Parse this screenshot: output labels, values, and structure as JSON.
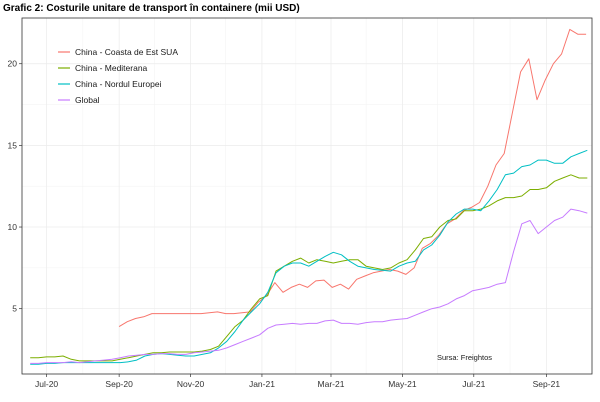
{
  "chart_data": {
    "type": "line",
    "title": "Grafic 2: Costurile unitare de transport în containere (mii USD)",
    "xlabel": "",
    "ylabel": "",
    "x_ticks": [
      {
        "date": "2020-07-01",
        "label": "Jul-20"
      },
      {
        "date": "2020-09-01",
        "label": "Sep-20"
      },
      {
        "date": "2020-11-01",
        "label": "Nov-20"
      },
      {
        "date": "2021-01-01",
        "label": "Jan-21"
      },
      {
        "date": "2021-03-01",
        "label": "Mar-21"
      },
      {
        "date": "2021-05-01",
        "label": "May-21"
      },
      {
        "date": "2021-07-01",
        "label": "Jul-21"
      },
      {
        "date": "2021-09-01",
        "label": "Sep-21"
      }
    ],
    "y_ticks": [
      5,
      10,
      15,
      20
    ],
    "xlim": [
      "2020-06-10",
      "2021-10-10"
    ],
    "ylim": [
      1,
      22.8
    ],
    "grid": true,
    "legend_position": "top-left",
    "annotation": "Sursa: Freightos",
    "series": [
      {
        "name": "China - Coasta de Est SUA",
        "color": "#f8766d",
        "points": [
          [
            "2020-09-01",
            3.9
          ],
          [
            "2020-09-08",
            4.2
          ],
          [
            "2020-09-15",
            4.4
          ],
          [
            "2020-09-22",
            4.5
          ],
          [
            "2020-09-29",
            4.7
          ],
          [
            "2020-10-06",
            4.7
          ],
          [
            "2020-10-13",
            4.7
          ],
          [
            "2020-10-20",
            4.7
          ],
          [
            "2020-10-27",
            4.7
          ],
          [
            "2020-11-03",
            4.7
          ],
          [
            "2020-11-10",
            4.7
          ],
          [
            "2020-11-17",
            4.75
          ],
          [
            "2020-11-24",
            4.8
          ],
          [
            "2020-12-01",
            4.7
          ],
          [
            "2020-12-08",
            4.7
          ],
          [
            "2020-12-15",
            4.75
          ],
          [
            "2020-12-22",
            4.8
          ],
          [
            "2020-12-29",
            5.4
          ],
          [
            "2021-01-05",
            5.8
          ],
          [
            "2021-01-12",
            6.6
          ],
          [
            "2021-01-19",
            6.0
          ],
          [
            "2021-01-26",
            6.3
          ],
          [
            "2021-02-02",
            6.5
          ],
          [
            "2021-02-09",
            6.3
          ],
          [
            "2021-02-16",
            6.7
          ],
          [
            "2021-02-23",
            6.75
          ],
          [
            "2021-03-02",
            6.3
          ],
          [
            "2021-03-09",
            6.5
          ],
          [
            "2021-03-16",
            6.2
          ],
          [
            "2021-03-23",
            6.8
          ],
          [
            "2021-03-30",
            7.0
          ],
          [
            "2021-04-06",
            7.2
          ],
          [
            "2021-04-13",
            7.3
          ],
          [
            "2021-04-20",
            7.4
          ],
          [
            "2021-04-27",
            7.3
          ],
          [
            "2021-05-04",
            7.1
          ],
          [
            "2021-05-11",
            7.5
          ],
          [
            "2021-05-18",
            8.7
          ],
          [
            "2021-05-25",
            9.0
          ],
          [
            "2021-06-01",
            9.5
          ],
          [
            "2021-06-08",
            10.2
          ],
          [
            "2021-06-15",
            10.5
          ],
          [
            "2021-06-22",
            11.0
          ],
          [
            "2021-06-29",
            11.2
          ],
          [
            "2021-07-06",
            11.5
          ],
          [
            "2021-07-13",
            12.5
          ],
          [
            "2021-07-20",
            13.8
          ],
          [
            "2021-07-27",
            14.5
          ],
          [
            "2021-08-03",
            17.0
          ],
          [
            "2021-08-10",
            19.5
          ],
          [
            "2021-08-17",
            20.3
          ],
          [
            "2021-08-24",
            17.8
          ],
          [
            "2021-08-31",
            19.0
          ],
          [
            "2021-09-07",
            20.0
          ],
          [
            "2021-09-14",
            20.6
          ],
          [
            "2021-09-21",
            22.1
          ],
          [
            "2021-09-28",
            21.8
          ],
          [
            "2021-10-05",
            21.8
          ]
        ]
      },
      {
        "name": "China - Mediterana",
        "color": "#7cae00",
        "points": [
          [
            "2020-06-17",
            2.0
          ],
          [
            "2020-06-24",
            2.0
          ],
          [
            "2020-07-01",
            2.05
          ],
          [
            "2020-07-08",
            2.05
          ],
          [
            "2020-07-15",
            2.1
          ],
          [
            "2020-07-22",
            1.9
          ],
          [
            "2020-07-29",
            1.8
          ],
          [
            "2020-08-05",
            1.8
          ],
          [
            "2020-08-12",
            1.8
          ],
          [
            "2020-08-19",
            1.8
          ],
          [
            "2020-08-26",
            1.8
          ],
          [
            "2020-09-02",
            1.9
          ],
          [
            "2020-09-09",
            2.0
          ],
          [
            "2020-09-16",
            2.1
          ],
          [
            "2020-09-23",
            2.2
          ],
          [
            "2020-09-30",
            2.3
          ],
          [
            "2020-10-07",
            2.3
          ],
          [
            "2020-10-14",
            2.35
          ],
          [
            "2020-10-21",
            2.35
          ],
          [
            "2020-10-28",
            2.35
          ],
          [
            "2020-11-04",
            2.35
          ],
          [
            "2020-11-11",
            2.4
          ],
          [
            "2020-11-18",
            2.5
          ],
          [
            "2020-11-25",
            2.7
          ],
          [
            "2020-12-02",
            3.3
          ],
          [
            "2020-12-09",
            3.9
          ],
          [
            "2020-12-16",
            4.3
          ],
          [
            "2020-12-23",
            5.0
          ],
          [
            "2020-12-30",
            5.6
          ],
          [
            "2021-01-06",
            5.8
          ],
          [
            "2021-01-13",
            7.3
          ],
          [
            "2021-01-20",
            7.6
          ],
          [
            "2021-01-27",
            7.9
          ],
          [
            "2021-02-03",
            8.1
          ],
          [
            "2021-02-10",
            7.8
          ],
          [
            "2021-02-17",
            8.0
          ],
          [
            "2021-02-24",
            7.9
          ],
          [
            "2021-03-03",
            7.8
          ],
          [
            "2021-03-10",
            7.9
          ],
          [
            "2021-03-17",
            8.0
          ],
          [
            "2021-03-24",
            8.0
          ],
          [
            "2021-03-31",
            7.6
          ],
          [
            "2021-04-07",
            7.5
          ],
          [
            "2021-04-14",
            7.4
          ],
          [
            "2021-04-21",
            7.5
          ],
          [
            "2021-04-28",
            7.8
          ],
          [
            "2021-05-05",
            8.0
          ],
          [
            "2021-05-12",
            8.6
          ],
          [
            "2021-05-19",
            9.3
          ],
          [
            "2021-05-26",
            9.4
          ],
          [
            "2021-06-02",
            10.0
          ],
          [
            "2021-06-09",
            10.4
          ],
          [
            "2021-06-16",
            10.5
          ],
          [
            "2021-06-23",
            11.0
          ],
          [
            "2021-06-30",
            11.0
          ],
          [
            "2021-07-07",
            11.1
          ],
          [
            "2021-07-14",
            11.3
          ],
          [
            "2021-07-21",
            11.6
          ],
          [
            "2021-07-28",
            11.8
          ],
          [
            "2021-08-04",
            11.8
          ],
          [
            "2021-08-11",
            11.9
          ],
          [
            "2021-08-18",
            12.3
          ],
          [
            "2021-08-25",
            12.3
          ],
          [
            "2021-09-01",
            12.4
          ],
          [
            "2021-09-08",
            12.8
          ],
          [
            "2021-09-15",
            13.0
          ],
          [
            "2021-09-22",
            13.2
          ],
          [
            "2021-09-29",
            13.0
          ],
          [
            "2021-10-06",
            13.0
          ]
        ]
      },
      {
        "name": "China - Nordul Europei",
        "color": "#00bfc4",
        "points": [
          [
            "2020-06-17",
            1.6
          ],
          [
            "2020-06-24",
            1.6
          ],
          [
            "2020-07-01",
            1.65
          ],
          [
            "2020-07-08",
            1.65
          ],
          [
            "2020-07-15",
            1.7
          ],
          [
            "2020-07-22",
            1.7
          ],
          [
            "2020-07-29",
            1.7
          ],
          [
            "2020-08-05",
            1.7
          ],
          [
            "2020-08-12",
            1.7
          ],
          [
            "2020-08-19",
            1.7
          ],
          [
            "2020-08-26",
            1.7
          ],
          [
            "2020-09-02",
            1.7
          ],
          [
            "2020-09-09",
            1.75
          ],
          [
            "2020-09-16",
            1.85
          ],
          [
            "2020-09-23",
            2.1
          ],
          [
            "2020-09-30",
            2.2
          ],
          [
            "2020-10-07",
            2.25
          ],
          [
            "2020-10-14",
            2.2
          ],
          [
            "2020-10-21",
            2.15
          ],
          [
            "2020-10-28",
            2.1
          ],
          [
            "2020-11-04",
            2.1
          ],
          [
            "2020-11-11",
            2.2
          ],
          [
            "2020-11-18",
            2.3
          ],
          [
            "2020-11-25",
            2.6
          ],
          [
            "2020-12-02",
            3.0
          ],
          [
            "2020-12-09",
            3.6
          ],
          [
            "2020-12-16",
            4.3
          ],
          [
            "2020-12-23",
            4.8
          ],
          [
            "2020-12-30",
            5.3
          ],
          [
            "2021-01-06",
            6.0
          ],
          [
            "2021-01-13",
            7.2
          ],
          [
            "2021-01-20",
            7.6
          ],
          [
            "2021-01-27",
            7.8
          ],
          [
            "2021-02-03",
            7.8
          ],
          [
            "2021-02-10",
            7.6
          ],
          [
            "2021-02-17",
            7.9
          ],
          [
            "2021-02-24",
            8.2
          ],
          [
            "2021-03-03",
            8.45
          ],
          [
            "2021-03-10",
            8.3
          ],
          [
            "2021-03-17",
            7.9
          ],
          [
            "2021-03-24",
            7.6
          ],
          [
            "2021-03-31",
            7.5
          ],
          [
            "2021-04-07",
            7.4
          ],
          [
            "2021-04-14",
            7.35
          ],
          [
            "2021-04-21",
            7.3
          ],
          [
            "2021-04-28",
            7.6
          ],
          [
            "2021-05-05",
            7.8
          ],
          [
            "2021-05-12",
            7.9
          ],
          [
            "2021-05-19",
            8.6
          ],
          [
            "2021-05-26",
            8.9
          ],
          [
            "2021-06-02",
            9.5
          ],
          [
            "2021-06-09",
            10.3
          ],
          [
            "2021-06-16",
            10.8
          ],
          [
            "2021-06-23",
            11.1
          ],
          [
            "2021-06-30",
            11.1
          ],
          [
            "2021-07-07",
            11.0
          ],
          [
            "2021-07-14",
            11.6
          ],
          [
            "2021-07-21",
            12.3
          ],
          [
            "2021-07-28",
            13.2
          ],
          [
            "2021-08-04",
            13.3
          ],
          [
            "2021-08-11",
            13.7
          ],
          [
            "2021-08-18",
            13.8
          ],
          [
            "2021-08-25",
            14.1
          ],
          [
            "2021-09-01",
            14.1
          ],
          [
            "2021-09-08",
            13.9
          ],
          [
            "2021-09-15",
            13.9
          ],
          [
            "2021-09-22",
            14.3
          ],
          [
            "2021-09-29",
            14.5
          ],
          [
            "2021-10-06",
            14.7
          ]
        ]
      },
      {
        "name": "Global",
        "color": "#c77cff",
        "points": [
          [
            "2020-06-17",
            1.65
          ],
          [
            "2020-06-24",
            1.65
          ],
          [
            "2020-07-01",
            1.7
          ],
          [
            "2020-07-08",
            1.7
          ],
          [
            "2020-07-15",
            1.7
          ],
          [
            "2020-07-22",
            1.75
          ],
          [
            "2020-07-29",
            1.7
          ],
          [
            "2020-08-05",
            1.75
          ],
          [
            "2020-08-12",
            1.8
          ],
          [
            "2020-08-19",
            1.85
          ],
          [
            "2020-08-26",
            1.9
          ],
          [
            "2020-09-02",
            2.0
          ],
          [
            "2020-09-09",
            2.1
          ],
          [
            "2020-09-16",
            2.15
          ],
          [
            "2020-09-23",
            2.2
          ],
          [
            "2020-09-30",
            2.2
          ],
          [
            "2020-10-07",
            2.25
          ],
          [
            "2020-10-14",
            2.25
          ],
          [
            "2020-10-21",
            2.2
          ],
          [
            "2020-10-28",
            2.2
          ],
          [
            "2020-11-04",
            2.3
          ],
          [
            "2020-11-11",
            2.35
          ],
          [
            "2020-11-18",
            2.4
          ],
          [
            "2020-11-25",
            2.45
          ],
          [
            "2020-12-02",
            2.6
          ],
          [
            "2020-12-09",
            2.8
          ],
          [
            "2020-12-16",
            3.0
          ],
          [
            "2020-12-23",
            3.2
          ],
          [
            "2020-12-30",
            3.4
          ],
          [
            "2021-01-06",
            3.8
          ],
          [
            "2021-01-13",
            4.0
          ],
          [
            "2021-01-20",
            4.05
          ],
          [
            "2021-01-27",
            4.1
          ],
          [
            "2021-02-03",
            4.05
          ],
          [
            "2021-02-10",
            4.1
          ],
          [
            "2021-02-17",
            4.1
          ],
          [
            "2021-02-24",
            4.25
          ],
          [
            "2021-03-03",
            4.3
          ],
          [
            "2021-03-10",
            4.1
          ],
          [
            "2021-03-17",
            4.1
          ],
          [
            "2021-03-24",
            4.05
          ],
          [
            "2021-03-31",
            4.15
          ],
          [
            "2021-04-07",
            4.2
          ],
          [
            "2021-04-14",
            4.2
          ],
          [
            "2021-04-21",
            4.3
          ],
          [
            "2021-04-28",
            4.35
          ],
          [
            "2021-05-05",
            4.4
          ],
          [
            "2021-05-12",
            4.6
          ],
          [
            "2021-05-19",
            4.8
          ],
          [
            "2021-05-26",
            5.0
          ],
          [
            "2021-06-02",
            5.1
          ],
          [
            "2021-06-09",
            5.3
          ],
          [
            "2021-06-16",
            5.6
          ],
          [
            "2021-06-23",
            5.8
          ],
          [
            "2021-06-30",
            6.1
          ],
          [
            "2021-07-07",
            6.2
          ],
          [
            "2021-07-14",
            6.3
          ],
          [
            "2021-07-21",
            6.5
          ],
          [
            "2021-07-28",
            6.6
          ],
          [
            "2021-08-04",
            8.5
          ],
          [
            "2021-08-11",
            10.2
          ],
          [
            "2021-08-18",
            10.4
          ],
          [
            "2021-08-25",
            9.6
          ],
          [
            "2021-09-01",
            10.0
          ],
          [
            "2021-09-08",
            10.4
          ],
          [
            "2021-09-15",
            10.6
          ],
          [
            "2021-09-22",
            11.1
          ],
          [
            "2021-09-29",
            11.0
          ],
          [
            "2021-10-06",
            10.85
          ]
        ]
      }
    ]
  }
}
